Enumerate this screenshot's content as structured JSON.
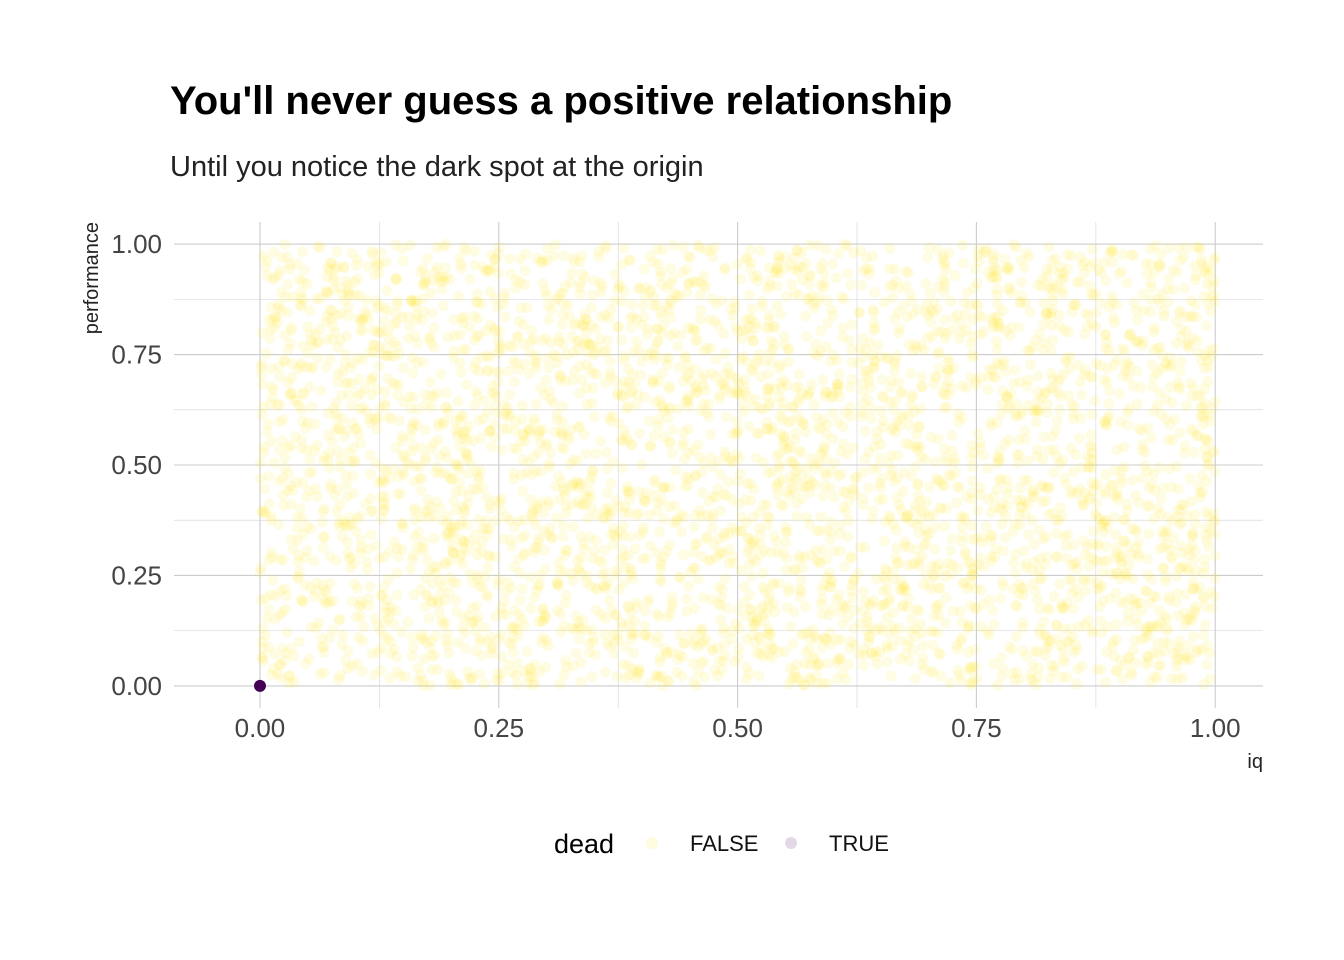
{
  "chart_data": {
    "type": "scatter",
    "title": "You'll never guess a positive relationship",
    "subtitle": "Until you notice the dark spot at the origin",
    "xlabel": "iq",
    "ylabel": "performance",
    "xlim": [
      -0.09,
      1.05
    ],
    "ylim": [
      -0.05,
      1.05
    ],
    "x_ticks": [
      0,
      0.25,
      0.5,
      0.75,
      1
    ],
    "x_tick_labels": [
      "0.00",
      "0.25",
      "0.50",
      "0.75",
      "1.00"
    ],
    "y_ticks": [
      0,
      0.25,
      0.5,
      0.75,
      1
    ],
    "y_tick_labels": [
      "0.00",
      "0.25",
      "0.50",
      "0.75",
      "1.00"
    ],
    "grid": true,
    "legend": {
      "title": "dead",
      "position": "bottom",
      "entries": [
        {
          "label": "FALSE",
          "color": "#FDE725"
        },
        {
          "label": "TRUE",
          "color": "#440154"
        }
      ]
    },
    "series": [
      {
        "name": "FALSE",
        "color": "#FDE725",
        "opacity": 0.12,
        "distribution": "uniform",
        "x_range": [
          0,
          1
        ],
        "y_range": [
          0,
          1
        ],
        "approx_count": 4000
      },
      {
        "name": "TRUE",
        "color": "#440154",
        "opacity": 1,
        "points": [
          [
            0,
            0
          ]
        ]
      }
    ]
  }
}
